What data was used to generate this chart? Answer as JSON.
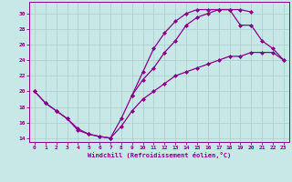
{
  "xlabel": "Windchill (Refroidissement éolien,°C)",
  "bg_color": "#c8e8e8",
  "grid_color": "#a8cccc",
  "line_color": "#880088",
  "xlim": [
    -0.5,
    23.5
  ],
  "ylim": [
    13.5,
    31.5
  ],
  "xticks": [
    0,
    1,
    2,
    3,
    4,
    5,
    6,
    7,
    8,
    9,
    10,
    11,
    12,
    13,
    14,
    15,
    16,
    17,
    18,
    19,
    20,
    21,
    22,
    23
  ],
  "yticks": [
    14,
    16,
    18,
    20,
    22,
    24,
    26,
    28,
    30
  ],
  "line1_x": [
    0,
    1,
    2,
    3,
    4,
    5,
    6,
    7,
    8,
    9,
    10,
    11,
    12,
    13,
    14,
    15,
    16,
    17,
    18,
    19,
    20,
    21,
    22,
    23
  ],
  "line1_y": [
    20,
    18.5,
    17.5,
    16.5,
    15.0,
    14.5,
    14.2,
    14.0,
    15.5,
    17.5,
    19.0,
    20.0,
    21.0,
    22.0,
    22.5,
    23.0,
    23.5,
    24.0,
    24.5,
    24.5,
    25.0,
    25.0,
    25.0,
    24.0
  ],
  "line2_x": [
    0,
    1,
    2,
    3,
    4,
    5,
    6,
    7,
    8,
    9,
    10,
    11,
    12,
    13,
    14,
    15,
    16,
    17,
    18,
    19,
    20
  ],
  "line2_y": [
    20,
    18.5,
    17.5,
    16.5,
    15.2,
    14.5,
    14.2,
    14.0,
    16.5,
    19.5,
    22.5,
    25.5,
    27.5,
    29.0,
    30.0,
    30.5,
    30.5,
    30.5,
    30.5,
    30.5,
    30.2
  ],
  "line3_x": [
    9,
    10,
    11,
    12,
    13,
    14,
    15,
    16,
    17,
    18,
    19,
    20,
    21,
    22,
    23
  ],
  "line3_y": [
    19.5,
    21.5,
    23.0,
    25.0,
    26.5,
    28.5,
    29.5,
    30.0,
    30.5,
    30.5,
    28.5,
    28.5,
    26.5,
    25.5,
    24.0
  ]
}
